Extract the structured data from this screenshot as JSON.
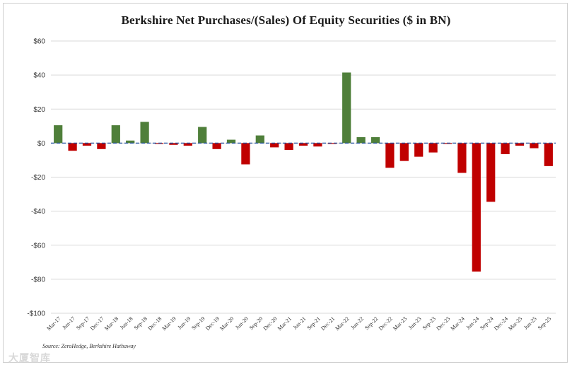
{
  "chart_data": {
    "type": "bar",
    "title": "Berkshire Net Purchases/(Sales) Of Equity Securities ($ in BN)",
    "source": "Source: ZeroHedge, Berkshire Hathaway",
    "xlabel": "",
    "ylabel": "",
    "ylim": [
      -100,
      60
    ],
    "yticks": [
      60,
      40,
      20,
      0,
      -20,
      -40,
      -60,
      -80,
      -100
    ],
    "ytick_labels": [
      "$60",
      "$40",
      "$20",
      "$0",
      "-$20",
      "-$40",
      "-$60",
      "-$80",
      "-$100"
    ],
    "grid": true,
    "colors": {
      "positive": "#4f7f3a",
      "negative": "#c00000",
      "zero_line": "#1f4e9e"
    },
    "categories": [
      "Mar-17",
      "Jun-17",
      "Sep-17",
      "Dec-17",
      "Mar-18",
      "Jun-18",
      "Sep-18",
      "Dec-18",
      "Mar-19",
      "Jun-19",
      "Sep-19",
      "Dec-19",
      "Mar-20",
      "Jun-20",
      "Sep-20",
      "Dec-20",
      "Mar-21",
      "Jun-21",
      "Sep-21",
      "Dec-21",
      "Mar-22",
      "Jun-22",
      "Sep-22",
      "Dec-22",
      "Mar-23",
      "Jun-23",
      "Sep-23",
      "Dec-23",
      "Mar-24",
      "Jun-24",
      "Sep-24",
      "Dec-24",
      "Mar-25",
      "Jun-25",
      "Sep-25"
    ],
    "values": [
      10.5,
      -4.5,
      -1.5,
      -3.5,
      10.5,
      1.5,
      12.5,
      -0.5,
      -1.0,
      -1.5,
      9.5,
      -3.5,
      2.0,
      -12.5,
      4.5,
      -2.5,
      -4.0,
      -1.5,
      -2.0,
      -0.5,
      41.5,
      3.5,
      3.5,
      -14.5,
      -10.5,
      -8.0,
      -5.5,
      -0.5,
      -17.5,
      -75.5,
      -34.5,
      -6.5,
      -1.5,
      -3.0,
      -13.5
    ]
  },
  "watermark": "大厦智库"
}
